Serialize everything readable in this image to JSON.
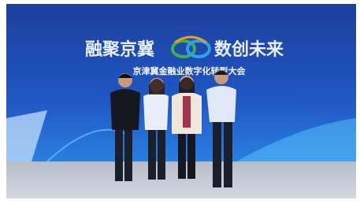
{
  "banner": {
    "headline_left": "融聚京冀",
    "headline_right": "数创未来",
    "subtitle": "京津冀金融业数字化转型大会"
  }
}
